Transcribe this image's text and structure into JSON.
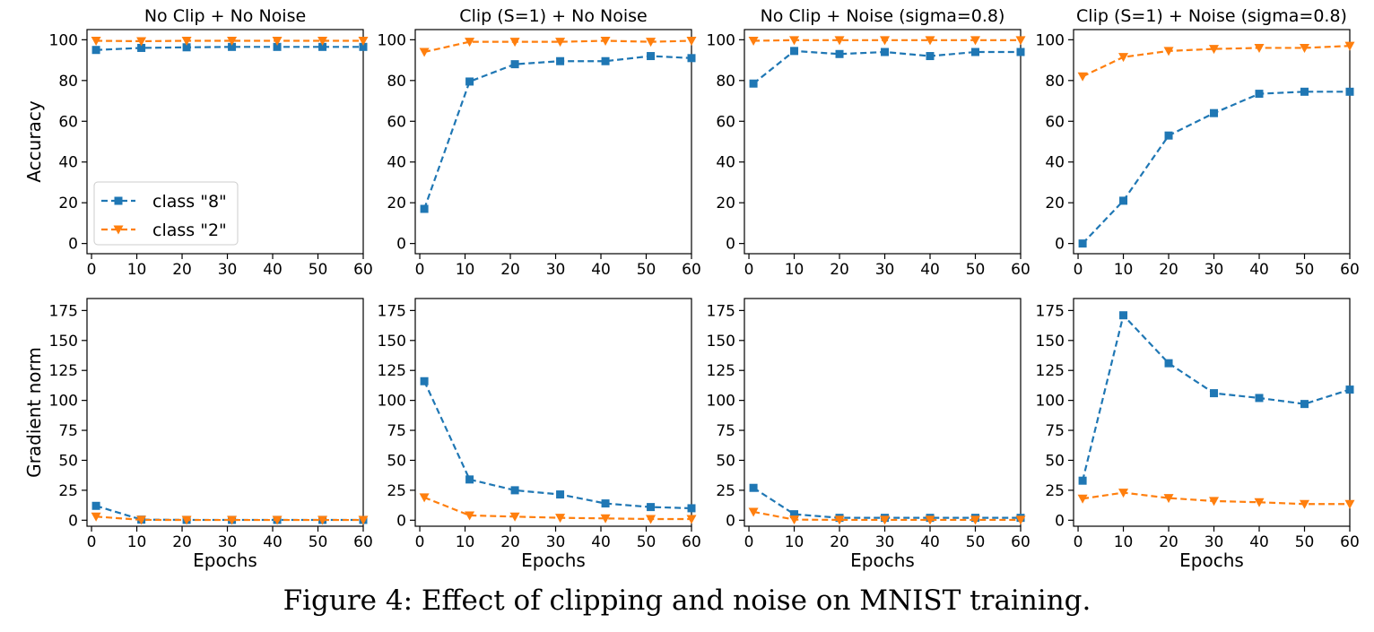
{
  "caption": "Figure 4: Effect of clipping and noise on MNIST training.",
  "colors": {
    "class8": "#1f77b4",
    "class2": "#ff7f0e"
  },
  "legend": {
    "placement": "lower-left of first accuracy panel",
    "entries": [
      "class \"8\"",
      "class \"2\""
    ]
  },
  "chart_data": [
    {
      "type": "line",
      "title": "No Clip + No Noise",
      "xlabel": "",
      "ylabel": "Accuracy",
      "xlim": [
        -1,
        60
      ],
      "ylim": [
        -5,
        105
      ],
      "xticks": [
        0,
        10,
        20,
        30,
        40,
        50,
        60
      ],
      "yticks": [
        0,
        20,
        40,
        60,
        80,
        100
      ],
      "x": [
        1,
        11,
        21,
        31,
        41,
        51,
        60
      ],
      "series": [
        {
          "name": "class \"8\"",
          "values": [
            95,
            96,
            96.3,
            96.5,
            96.5,
            96.5,
            96.5
          ]
        },
        {
          "name": "class \"2\"",
          "values": [
            99.5,
            99.3,
            99.5,
            99.5,
            99.5,
            99.5,
            99.5
          ]
        }
      ]
    },
    {
      "type": "line",
      "title": "Clip (S=1) + No Noise",
      "xlabel": "",
      "ylabel": "",
      "xlim": [
        -1,
        60
      ],
      "ylim": [
        -5,
        105
      ],
      "xticks": [
        0,
        10,
        20,
        30,
        40,
        50,
        60
      ],
      "yticks": [
        0,
        20,
        40,
        60,
        80,
        100
      ],
      "x": [
        1,
        11,
        21,
        31,
        41,
        51,
        60
      ],
      "series": [
        {
          "name": "class \"8\"",
          "values": [
            17,
            79.5,
            88,
            89.5,
            89.5,
            92,
            91
          ]
        },
        {
          "name": "class \"2\"",
          "values": [
            94,
            99,
            99,
            99,
            99.5,
            99,
            99.5
          ]
        }
      ]
    },
    {
      "type": "line",
      "title": "No Clip + Noise (sigma=0.8)",
      "xlabel": "",
      "ylabel": "",
      "xlim": [
        -1,
        60
      ],
      "ylim": [
        -5,
        105
      ],
      "xticks": [
        0,
        10,
        20,
        30,
        40,
        50,
        60
      ],
      "yticks": [
        0,
        20,
        40,
        60,
        80,
        100
      ],
      "x": [
        1,
        10,
        20,
        30,
        40,
        50,
        60
      ],
      "series": [
        {
          "name": "class \"8\"",
          "values": [
            78.5,
            94.5,
            93,
            94,
            92,
            94,
            94
          ]
        },
        {
          "name": "class \"2\"",
          "values": [
            99.5,
            99.8,
            99.8,
            99.8,
            99.8,
            99.8,
            99.8
          ]
        }
      ]
    },
    {
      "type": "line",
      "title": "Clip (S=1) + Noise (sigma=0.8)",
      "xlabel": "",
      "ylabel": "",
      "xlim": [
        -1,
        60
      ],
      "ylim": [
        -5,
        105
      ],
      "xticks": [
        0,
        10,
        20,
        30,
        40,
        50,
        60
      ],
      "yticks": [
        0,
        20,
        40,
        60,
        80,
        100
      ],
      "x": [
        1,
        10,
        20,
        30,
        40,
        50,
        60
      ],
      "series": [
        {
          "name": "class \"8\"",
          "values": [
            0,
            21,
            53,
            64,
            73.5,
            74.5,
            74.5
          ]
        },
        {
          "name": "class \"2\"",
          "values": [
            82,
            91.5,
            94.5,
            95.5,
            96,
            96,
            97
          ]
        }
      ]
    },
    {
      "type": "line",
      "title": "",
      "xlabel": "Epochs",
      "ylabel": "Gradient norm",
      "xlim": [
        -1,
        60
      ],
      "ylim": [
        -5,
        185
      ],
      "xticks": [
        0,
        10,
        20,
        30,
        40,
        50,
        60
      ],
      "yticks": [
        0,
        25,
        50,
        75,
        100,
        125,
        150,
        175
      ],
      "x": [
        1,
        11,
        21,
        31,
        41,
        51,
        60
      ],
      "series": [
        {
          "name": "class \"8\"",
          "values": [
            12,
            0.5,
            0.3,
            0.3,
            0.3,
            0.3,
            0.3
          ]
        },
        {
          "name": "class \"2\"",
          "values": [
            3,
            0.3,
            0.2,
            0.2,
            0.2,
            0.2,
            0.2
          ]
        }
      ]
    },
    {
      "type": "line",
      "title": "",
      "xlabel": "Epochs",
      "ylabel": "",
      "xlim": [
        -1,
        60
      ],
      "ylim": [
        -5,
        185
      ],
      "xticks": [
        0,
        10,
        20,
        30,
        40,
        50,
        60
      ],
      "yticks": [
        0,
        25,
        50,
        75,
        100,
        125,
        150,
        175
      ],
      "x": [
        1,
        11,
        21,
        31,
        41,
        51,
        60
      ],
      "series": [
        {
          "name": "class \"8\"",
          "values": [
            116,
            34,
            25,
            21.5,
            14,
            11,
            10
          ]
        },
        {
          "name": "class \"2\"",
          "values": [
            19,
            4,
            3,
            2,
            1.5,
            1,
            1
          ]
        }
      ]
    },
    {
      "type": "line",
      "title": "",
      "xlabel": "Epochs",
      "ylabel": "",
      "xlim": [
        -1,
        60
      ],
      "ylim": [
        -5,
        185
      ],
      "xticks": [
        0,
        10,
        20,
        30,
        40,
        50,
        60
      ],
      "yticks": [
        0,
        25,
        50,
        75,
        100,
        125,
        150,
        175
      ],
      "x": [
        1,
        10,
        20,
        30,
        40,
        50,
        60
      ],
      "series": [
        {
          "name": "class \"8\"",
          "values": [
            27,
            5,
            2,
            2,
            2,
            2,
            2
          ]
        },
        {
          "name": "class \"2\"",
          "values": [
            7,
            0.5,
            0.3,
            0.3,
            0.3,
            0.3,
            0.3
          ]
        }
      ]
    },
    {
      "type": "line",
      "title": "",
      "xlabel": "Epochs",
      "ylabel": "",
      "xlim": [
        -1,
        60
      ],
      "ylim": [
        -5,
        185
      ],
      "xticks": [
        0,
        10,
        20,
        30,
        40,
        50,
        60
      ],
      "yticks": [
        0,
        25,
        50,
        75,
        100,
        125,
        150,
        175
      ],
      "x": [
        1,
        10,
        20,
        30,
        40,
        50,
        60
      ],
      "series": [
        {
          "name": "class \"8\"",
          "values": [
            33,
            171,
            131,
            106,
            102,
            97,
            109
          ]
        },
        {
          "name": "class \"2\"",
          "values": [
            18,
            23,
            18.5,
            16,
            15,
            13.5,
            13.5
          ]
        }
      ]
    }
  ]
}
